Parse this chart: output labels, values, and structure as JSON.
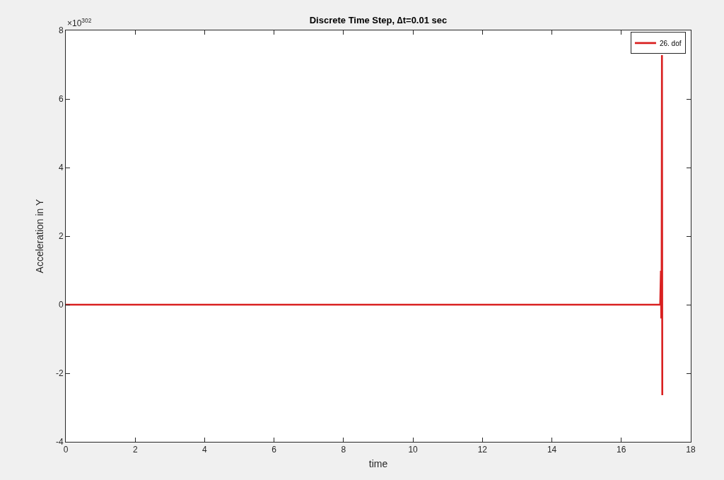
{
  "chart_data": {
    "type": "line",
    "title": "Discrete Time Step, ∆t=0.01 sec",
    "xlabel": "time",
    "ylabel": "Acceleration in Y",
    "annotations": [
      "×10$^{302}$"
    ],
    "series": [
      {
        "name": "26. dof",
        "color": "#d92020",
        "x": [
          0,
          17.12,
          17.14,
          17.15,
          17.16,
          17.17,
          17.18
        ],
        "values": [
          0,
          0,
          0.99,
          -0.4,
          0,
          7.28,
          -2.64
        ]
      }
    ],
    "xlim": [
      0,
      18
    ],
    "xticks": [
      0,
      2,
      4,
      6,
      8,
      10,
      12,
      14,
      16,
      18
    ],
    "ylim": [
      -4,
      8
    ],
    "yticks": [
      -4,
      -2,
      0,
      2,
      4,
      6,
      8
    ],
    "grid": false,
    "legend": "top right",
    "marker": "none",
    "line_style": "solid"
  }
}
